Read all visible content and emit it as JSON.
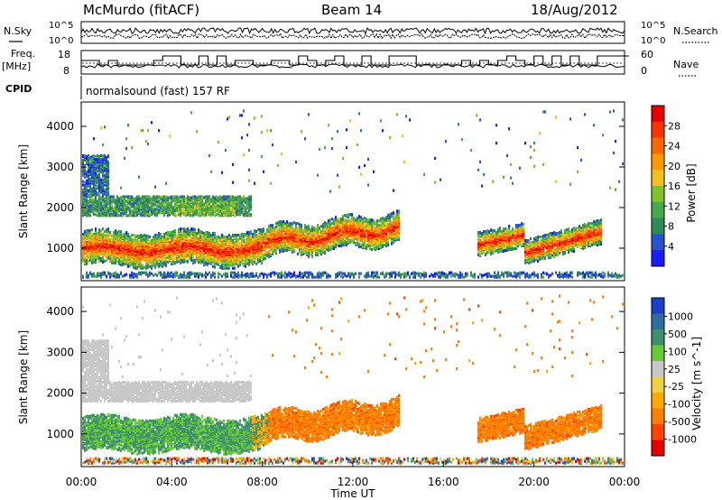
{
  "header": {
    "station": "McMurdo (fitACF)",
    "beam": "Beam 14",
    "date": "18/Aug/2012"
  },
  "noise_panel": {
    "left_label": "N.Sky",
    "right_label": "N.Search",
    "left_ticks": [
      "10^5",
      "10^0"
    ],
    "right_ticks": [
      "10^5",
      "10^0"
    ]
  },
  "freq_panel": {
    "left_label_line1": "Freq.",
    "left_label_line2": "[MHz]",
    "left_ticks": [
      "18",
      "8"
    ],
    "right_label": "Nave",
    "right_ticks": [
      "60",
      "0"
    ]
  },
  "cpid_panel": {
    "label": "CPID",
    "text": "normalsound (fast) 157 RF"
  },
  "colors": {
    "power": [
      "#1a1aff",
      "#2a4fd0",
      "#2e8b57",
      "#4aa84a",
      "#7ec32a",
      "#f0c020",
      "#ff9900",
      "#ff6600",
      "#ff3300",
      "#e60000"
    ],
    "velocity": [
      "#1a3fc8",
      "#2e6e9e",
      "#3f8f6f",
      "#66cc33",
      "#c8c8c8",
      "#f0d040",
      "#ffaa00",
      "#ff7f00",
      "#ff4400",
      "#e60000"
    ]
  },
  "chart_data": [
    {
      "type": "heatmap",
      "name": "power",
      "ylabel": "Slant Range [km]",
      "xlim": [
        "00:00",
        "24:00"
      ],
      "ylim": [
        200,
        4600
      ],
      "y_ticks": [
        1000,
        2000,
        3000,
        4000
      ],
      "colorbar": {
        "label": "Power [dB]",
        "ticks": [
          "4",
          "8",
          "12",
          "16",
          "20",
          "24",
          "28"
        ],
        "range": [
          0,
          32
        ]
      }
    },
    {
      "type": "heatmap",
      "name": "velocity",
      "ylabel": "Slant Range [km]",
      "xlabel": "Time UT",
      "x_ticks": [
        "00:00",
        "04:00",
        "08:00",
        "12:00",
        "16:00",
        "20:00",
        "00:00"
      ],
      "ylim": [
        200,
        4600
      ],
      "y_ticks": [
        1000,
        2000,
        3000,
        4000
      ],
      "colorbar": {
        "label": "Velocity [m s^-1]",
        "ticks": [
          "1000",
          "500",
          "100",
          "25",
          "-25",
          "-100",
          "-500",
          "-1000"
        ]
      }
    }
  ]
}
